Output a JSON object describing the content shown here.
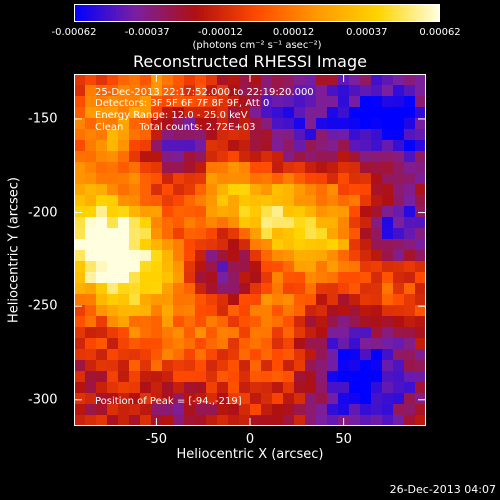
{
  "colorbar": {
    "ticks": [
      "-0.00062",
      "-0.00037",
      "-0.00012",
      "0.00012",
      "0.00037",
      "0.00062"
    ],
    "units_label": "(photons cm⁻² s⁻¹ asec⁻²)",
    "colors": [
      "#0000ff",
      "#7a1fa0",
      "#b01010",
      "#ff4a00",
      "#ff9a00",
      "#ffd400",
      "#ffffe0"
    ]
  },
  "chart_data": {
    "type": "heatmap",
    "title": "Reconstructed RHESSI Image",
    "xlabel": "Heliocentric X (arcsec)",
    "ylabel": "Heliocentric Y (arcsec)",
    "xlim": [
      -94,
      94
    ],
    "ylim": [
      -314,
      -126
    ],
    "x_ticks": [
      "-50",
      "0",
      "50"
    ],
    "x_tick_values": [
      -50,
      0,
      50
    ],
    "y_ticks": [
      "-150",
      "-200",
      "-250",
      "-300"
    ],
    "y_tick_values": [
      -150,
      -200,
      -250,
      -300
    ],
    "colorbar_range": [
      -0.00062,
      0.00062
    ],
    "annotations": [
      "25-Dec-2013 22:17:52.000 to 22:19:20.000",
      "Detectors: 3F 5F 6F 7F 8F 9F, Att 0",
      "Energy Range: 12.0 - 25.0 keV",
      "Clean     Total counts: 2.72E+03"
    ],
    "peak_label": "Position of Peak = [-94.,-219]"
  },
  "footer": {
    "timestamp": "26-Dec-2013 04:07"
  }
}
